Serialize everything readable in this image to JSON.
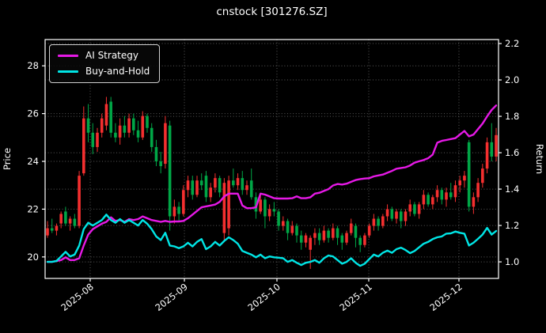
{
  "title": "cnstock [301276.SZ]",
  "chart_data": {
    "type": "candlestick",
    "title": "cnstock [301276.SZ]",
    "ylabel_left": "Price",
    "ylabel_right": "Return",
    "grid": true,
    "legend_position": "upper-left",
    "x_tick_labels": [
      "2025-08",
      "2025-09",
      "2025-10",
      "2025-11",
      "2025-12"
    ],
    "x_tick_pos": [
      0.0995,
      0.3072,
      0.5113,
      0.7138,
      0.9127
    ],
    "yticks_left": [
      20,
      22,
      24,
      26,
      28
    ],
    "ylim_left": [
      19.1,
      29.1
    ],
    "yticks_right": [
      1.0,
      1.2,
      1.4,
      1.6,
      1.8,
      2.0,
      2.2
    ],
    "ylim_right": [
      0.909,
      2.222
    ],
    "colors": {
      "background": "#000000",
      "text": "#ffffff",
      "grid": "#6a6a6a",
      "spine": "#ffffff",
      "up": "#f42f2f",
      "down": "#00a646",
      "ai_strategy": "#e619e6",
      "buy_and_hold": "#00e5e5"
    },
    "candles_ohlc": [
      [
        20.9,
        21.5,
        20.8,
        21.2
      ],
      [
        21.2,
        21.6,
        21.0,
        21.1
      ],
      [
        21.1,
        21.4,
        20.9,
        21.3
      ],
      [
        21.4,
        21.9,
        21.2,
        21.8
      ],
      [
        21.9,
        22.1,
        21.3,
        21.4
      ],
      [
        21.4,
        21.7,
        21.1,
        21.6
      ],
      [
        21.6,
        21.8,
        21.2,
        21.3
      ],
      [
        21.3,
        23.6,
        21.2,
        23.4
      ],
      [
        23.5,
        26.3,
        23.4,
        25.8
      ],
      [
        25.8,
        26.4,
        24.8,
        25.2
      ],
      [
        25.2,
        25.6,
        24.3,
        24.6
      ],
      [
        24.6,
        25.4,
        24.4,
        25.2
      ],
      [
        25.2,
        26.0,
        25.0,
        25.8
      ],
      [
        25.5,
        26.7,
        25.3,
        26.4
      ],
      [
        26.5,
        26.7,
        25.0,
        25.2
      ],
      [
        25.2,
        25.6,
        24.8,
        25.0
      ],
      [
        25.0,
        25.8,
        24.7,
        25.5
      ],
      [
        25.5,
        25.9,
        25.0,
        25.2
      ],
      [
        25.2,
        26.0,
        25.0,
        25.8
      ],
      [
        25.8,
        26.0,
        25.1,
        25.3
      ],
      [
        25.3,
        25.7,
        24.8,
        25.0
      ],
      [
        25.0,
        26.1,
        24.9,
        25.9
      ],
      [
        25.9,
        26.0,
        25.2,
        25.4
      ],
      [
        25.4,
        25.6,
        24.4,
        24.6
      ],
      [
        24.6,
        24.9,
        23.8,
        24.0
      ],
      [
        24.0,
        24.4,
        23.5,
        23.8
      ],
      [
        23.9,
        25.9,
        23.7,
        25.6
      ],
      [
        25.5,
        25.7,
        21.1,
        21.7
      ],
      [
        21.7,
        22.4,
        21.4,
        22.1
      ],
      [
        22.1,
        22.3,
        21.5,
        21.8
      ],
      [
        21.8,
        23.0,
        21.7,
        22.8
      ],
      [
        22.8,
        23.4,
        22.5,
        23.2
      ],
      [
        23.2,
        23.4,
        22.4,
        22.6
      ],
      [
        22.6,
        23.4,
        22.5,
        23.2
      ],
      [
        23.2,
        23.5,
        22.8,
        23.0
      ],
      [
        23.4,
        23.6,
        22.3,
        22.5
      ],
      [
        22.5,
        23.1,
        22.3,
        22.9
      ],
      [
        22.9,
        23.5,
        22.7,
        23.3
      ],
      [
        23.3,
        23.4,
        22.5,
        22.7
      ],
      [
        21.0,
        23.3,
        20.7,
        23.1
      ],
      [
        21.2,
        23.4,
        20.9,
        23.2
      ],
      [
        23.2,
        23.7,
        22.9,
        23.0
      ],
      [
        23.0,
        23.5,
        22.8,
        23.3
      ],
      [
        23.3,
        23.6,
        22.6,
        22.8
      ],
      [
        22.8,
        23.2,
        22.6,
        23.0
      ],
      [
        23.2,
        23.7,
        22.4,
        22.5
      ],
      [
        22.5,
        22.7,
        21.6,
        21.9
      ],
      [
        21.9,
        22.6,
        21.8,
        22.4
      ],
      [
        22.4,
        22.5,
        21.2,
        21.7
      ],
      [
        21.7,
        22.2,
        21.5,
        22.0
      ],
      [
        22.0,
        22.3,
        21.7,
        21.9
      ],
      [
        21.9,
        22.0,
        21.1,
        21.3
      ],
      [
        21.3,
        21.7,
        21.1,
        21.5
      ],
      [
        21.5,
        21.6,
        20.7,
        21.0
      ],
      [
        21.0,
        21.5,
        20.9,
        21.3
      ],
      [
        21.3,
        21.4,
        20.6,
        20.9
      ],
      [
        20.9,
        21.1,
        20.3,
        20.6
      ],
      [
        20.6,
        21.0,
        20.4,
        20.9
      ],
      [
        20.3,
        20.9,
        19.5,
        20.8
      ],
      [
        20.8,
        21.2,
        20.5,
        21.0
      ],
      [
        21.0,
        21.2,
        20.5,
        20.7
      ],
      [
        20.7,
        21.3,
        20.6,
        21.1
      ],
      [
        21.1,
        21.2,
        20.6,
        20.8
      ],
      [
        20.8,
        21.4,
        20.7,
        21.2
      ],
      [
        21.2,
        21.3,
        20.5,
        20.8
      ],
      [
        20.9,
        21.0,
        20.3,
        20.6
      ],
      [
        20.6,
        21.1,
        20.5,
        21.0
      ],
      [
        21.0,
        21.6,
        20.9,
        21.4
      ],
      [
        21.3,
        21.4,
        20.4,
        20.8
      ],
      [
        20.8,
        20.9,
        20.2,
        20.5
      ],
      [
        20.5,
        21.0,
        20.4,
        20.9
      ],
      [
        20.9,
        21.4,
        20.8,
        21.3
      ],
      [
        21.3,
        21.8,
        21.1,
        21.6
      ],
      [
        21.6,
        21.7,
        21.1,
        21.3
      ],
      [
        21.3,
        21.8,
        21.2,
        21.7
      ],
      [
        21.7,
        22.2,
        21.5,
        22.0
      ],
      [
        22.0,
        22.1,
        21.5,
        21.6
      ],
      [
        21.6,
        22.0,
        21.4,
        21.9
      ],
      [
        21.9,
        22.0,
        21.2,
        21.5
      ],
      [
        21.5,
        22.0,
        21.3,
        21.9
      ],
      [
        21.9,
        22.4,
        21.7,
        22.2
      ],
      [
        22.2,
        22.3,
        21.7,
        21.8
      ],
      [
        21.8,
        22.3,
        21.6,
        22.2
      ],
      [
        22.2,
        22.8,
        22.0,
        22.6
      ],
      [
        22.6,
        22.7,
        22.1,
        22.2
      ],
      [
        22.2,
        22.6,
        22.0,
        22.5
      ],
      [
        22.5,
        23.0,
        22.3,
        22.8
      ],
      [
        22.8,
        22.9,
        22.2,
        22.4
      ],
      [
        22.4,
        22.9,
        22.1,
        22.7
      ],
      [
        22.7,
        23.1,
        22.4,
        22.5
      ],
      [
        22.5,
        23.2,
        22.3,
        23.0
      ],
      [
        23.0,
        23.4,
        22.7,
        23.2
      ],
      [
        23.2,
        23.6,
        22.9,
        23.4
      ],
      [
        24.8,
        24.9,
        21.9,
        22.1
      ],
      [
        22.1,
        22.7,
        21.8,
        22.5
      ],
      [
        22.5,
        23.3,
        22.3,
        23.1
      ],
      [
        23.1,
        23.9,
        22.9,
        23.7
      ],
      [
        23.7,
        25.0,
        23.5,
        24.8
      ],
      [
        24.8,
        25.6,
        24.0,
        24.2
      ],
      [
        24.2,
        25.4,
        24.0,
        25.1
      ]
    ],
    "series": [
      {
        "name": "AI Strategy",
        "axis": "right",
        "color": "#e619e6",
        "values": [
          1.0,
          1.0,
          1.005,
          1.01,
          1.025,
          1.01,
          1.01,
          1.02,
          1.09,
          1.15,
          1.18,
          1.195,
          1.21,
          1.22,
          1.245,
          1.225,
          1.23,
          1.22,
          1.235,
          1.23,
          1.235,
          1.25,
          1.24,
          1.23,
          1.225,
          1.22,
          1.225,
          1.22,
          1.222,
          1.222,
          1.225,
          1.24,
          1.26,
          1.28,
          1.3,
          1.305,
          1.31,
          1.315,
          1.33,
          1.36,
          1.375,
          1.375,
          1.375,
          1.31,
          1.295,
          1.295,
          1.3,
          1.375,
          1.37,
          1.36,
          1.35,
          1.348,
          1.348,
          1.348,
          1.35,
          1.36,
          1.35,
          1.35,
          1.355,
          1.375,
          1.38,
          1.39,
          1.4,
          1.42,
          1.428,
          1.425,
          1.43,
          1.44,
          1.45,
          1.455,
          1.458,
          1.46,
          1.47,
          1.475,
          1.48,
          1.49,
          1.5,
          1.512,
          1.516,
          1.52,
          1.53,
          1.545,
          1.553,
          1.56,
          1.57,
          1.59,
          1.655,
          1.665,
          1.67,
          1.675,
          1.68,
          1.7,
          1.72,
          1.69,
          1.7,
          1.73,
          1.76,
          1.8,
          1.835,
          1.86
        ]
      },
      {
        "name": "Buy-and-Hold",
        "axis": "right",
        "color": "#00e5e5",
        "values": [
          1.0,
          1.0,
          1.005,
          1.03,
          1.055,
          1.03,
          1.04,
          1.09,
          1.18,
          1.215,
          1.2,
          1.215,
          1.23,
          1.26,
          1.23,
          1.215,
          1.235,
          1.215,
          1.23,
          1.215,
          1.2,
          1.23,
          1.21,
          1.18,
          1.14,
          1.12,
          1.16,
          1.09,
          1.085,
          1.075,
          1.085,
          1.105,
          1.085,
          1.11,
          1.125,
          1.07,
          1.085,
          1.11,
          1.09,
          1.115,
          1.135,
          1.12,
          1.1,
          1.06,
          1.05,
          1.04,
          1.025,
          1.04,
          1.02,
          1.03,
          1.025,
          1.023,
          1.02,
          1.0,
          1.01,
          0.995,
          0.983,
          0.995,
          1.0,
          1.01,
          0.995,
          1.02,
          1.035,
          1.03,
          1.01,
          0.99,
          1.0,
          1.02,
          0.995,
          0.978,
          0.99,
          1.015,
          1.04,
          1.03,
          1.05,
          1.062,
          1.05,
          1.07,
          1.078,
          1.065,
          1.048,
          1.06,
          1.08,
          1.1,
          1.11,
          1.125,
          1.135,
          1.14,
          1.155,
          1.157,
          1.167,
          1.16,
          1.155,
          1.09,
          1.105,
          1.127,
          1.15,
          1.187,
          1.15,
          1.17
        ]
      }
    ]
  }
}
